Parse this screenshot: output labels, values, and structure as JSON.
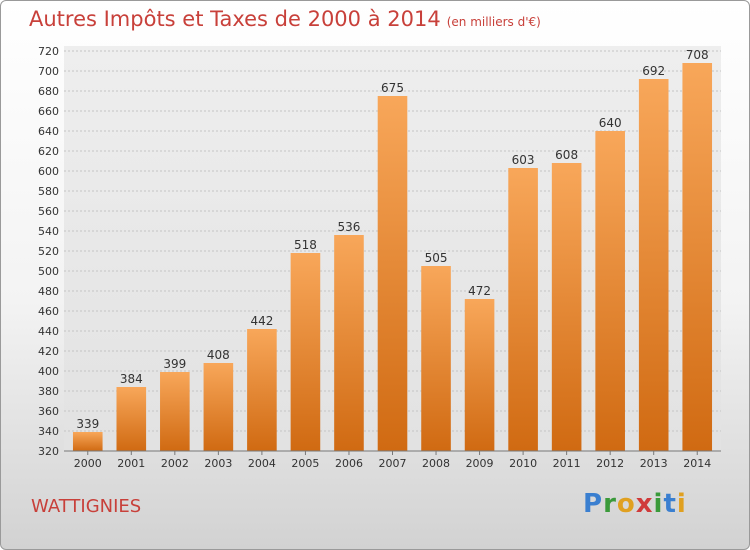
{
  "title": {
    "main": "Autres Impôts et Taxes de 2000 à 2014",
    "unit": "(en milliers d'€)"
  },
  "location": "WATTIGNIES",
  "logo": {
    "text": "Proxiti",
    "colors": [
      "#3a7fd0",
      "#3a9a3a",
      "#e0a020",
      "#d03a3a",
      "#3a9a3a",
      "#3a7fd0",
      "#e0a020"
    ]
  },
  "colors": {
    "accent": "#c8403a",
    "bar_top": "#f8a75a",
    "bar_bottom": "#d06a12"
  },
  "chart_data": {
    "type": "bar",
    "categories": [
      "2000",
      "2001",
      "2002",
      "2003",
      "2004",
      "2005",
      "2006",
      "2007",
      "2008",
      "2009",
      "2010",
      "2011",
      "2012",
      "2013",
      "2014"
    ],
    "values": [
      339,
      384,
      399,
      408,
      442,
      518,
      536,
      675,
      505,
      472,
      603,
      608,
      640,
      692,
      708
    ],
    "ylim": [
      320,
      720
    ],
    "yticks": [
      320,
      340,
      360,
      380,
      400,
      420,
      440,
      460,
      480,
      500,
      520,
      540,
      560,
      580,
      600,
      620,
      640,
      660,
      680,
      700,
      720
    ],
    "grid": true,
    "xlabel": "",
    "ylabel": ""
  }
}
